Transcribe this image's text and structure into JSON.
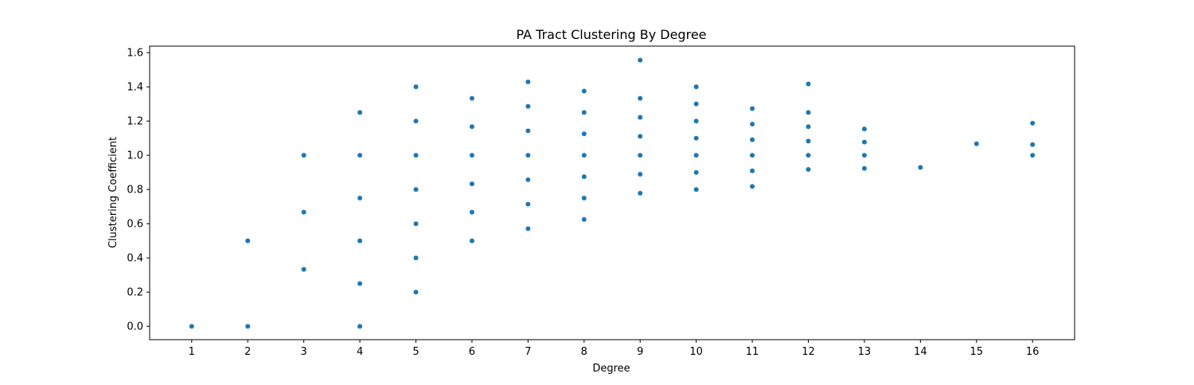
{
  "chart_data": {
    "type": "scatter",
    "title": "PA Tract Clustering By Degree",
    "xlabel": "Degree",
    "ylabel": "Clustering Coefficient",
    "xlim": [
      0.25,
      16.75
    ],
    "ylim": [
      -0.078,
      1.638
    ],
    "x_ticks": [
      1,
      2,
      3,
      4,
      5,
      6,
      7,
      8,
      9,
      10,
      11,
      12,
      13,
      14,
      15,
      16
    ],
    "y_ticks": [
      0.0,
      0.2,
      0.4,
      0.6,
      0.8,
      1.0,
      1.2,
      1.4,
      1.6
    ],
    "y_tick_labels": [
      "0.0",
      "0.2",
      "0.4",
      "0.6",
      "0.8",
      "1.0",
      "1.2",
      "1.4",
      "1.6"
    ],
    "grid": false,
    "marker_color": "#1f77b4",
    "points": [
      {
        "x": 1,
        "y": 0.0
      },
      {
        "x": 2,
        "y": 0.0
      },
      {
        "x": 2,
        "y": 0.5
      },
      {
        "x": 3,
        "y": 0.333
      },
      {
        "x": 3,
        "y": 0.667
      },
      {
        "x": 3,
        "y": 1.0
      },
      {
        "x": 4,
        "y": 0.0
      },
      {
        "x": 4,
        "y": 0.25
      },
      {
        "x": 4,
        "y": 0.5
      },
      {
        "x": 4,
        "y": 0.75
      },
      {
        "x": 4,
        "y": 1.0
      },
      {
        "x": 4,
        "y": 1.25
      },
      {
        "x": 5,
        "y": 0.2
      },
      {
        "x": 5,
        "y": 0.4
      },
      {
        "x": 5,
        "y": 0.6
      },
      {
        "x": 5,
        "y": 0.8
      },
      {
        "x": 5,
        "y": 1.0
      },
      {
        "x": 5,
        "y": 1.2
      },
      {
        "x": 5,
        "y": 1.4
      },
      {
        "x": 6,
        "y": 0.5
      },
      {
        "x": 6,
        "y": 0.667
      },
      {
        "x": 6,
        "y": 0.833
      },
      {
        "x": 6,
        "y": 1.0
      },
      {
        "x": 6,
        "y": 1.167
      },
      {
        "x": 6,
        "y": 1.333
      },
      {
        "x": 7,
        "y": 0.571
      },
      {
        "x": 7,
        "y": 0.714
      },
      {
        "x": 7,
        "y": 0.857
      },
      {
        "x": 7,
        "y": 1.0
      },
      {
        "x": 7,
        "y": 1.143
      },
      {
        "x": 7,
        "y": 1.286
      },
      {
        "x": 7,
        "y": 1.429
      },
      {
        "x": 8,
        "y": 0.625
      },
      {
        "x": 8,
        "y": 0.75
      },
      {
        "x": 8,
        "y": 0.875
      },
      {
        "x": 8,
        "y": 1.0
      },
      {
        "x": 8,
        "y": 1.125
      },
      {
        "x": 8,
        "y": 1.25
      },
      {
        "x": 8,
        "y": 1.375
      },
      {
        "x": 9,
        "y": 0.778
      },
      {
        "x": 9,
        "y": 0.889
      },
      {
        "x": 9,
        "y": 1.0
      },
      {
        "x": 9,
        "y": 1.111
      },
      {
        "x": 9,
        "y": 1.222
      },
      {
        "x": 9,
        "y": 1.333
      },
      {
        "x": 9,
        "y": 1.556
      },
      {
        "x": 10,
        "y": 0.8
      },
      {
        "x": 10,
        "y": 0.9
      },
      {
        "x": 10,
        "y": 1.0
      },
      {
        "x": 10,
        "y": 1.1
      },
      {
        "x": 10,
        "y": 1.2
      },
      {
        "x": 10,
        "y": 1.3
      },
      {
        "x": 10,
        "y": 1.4
      },
      {
        "x": 11,
        "y": 0.818
      },
      {
        "x": 11,
        "y": 0.909
      },
      {
        "x": 11,
        "y": 1.0
      },
      {
        "x": 11,
        "y": 1.091
      },
      {
        "x": 11,
        "y": 1.182
      },
      {
        "x": 11,
        "y": 1.273
      },
      {
        "x": 12,
        "y": 0.917
      },
      {
        "x": 12,
        "y": 1.0
      },
      {
        "x": 12,
        "y": 1.083
      },
      {
        "x": 12,
        "y": 1.167
      },
      {
        "x": 12,
        "y": 1.25
      },
      {
        "x": 12,
        "y": 1.417
      },
      {
        "x": 13,
        "y": 0.923
      },
      {
        "x": 13,
        "y": 1.0
      },
      {
        "x": 13,
        "y": 1.077
      },
      {
        "x": 13,
        "y": 1.154
      },
      {
        "x": 14,
        "y": 0.929
      },
      {
        "x": 15,
        "y": 1.067
      },
      {
        "x": 16,
        "y": 1.0
      },
      {
        "x": 16,
        "y": 1.0625
      },
      {
        "x": 16,
        "y": 1.1875
      }
    ]
  }
}
